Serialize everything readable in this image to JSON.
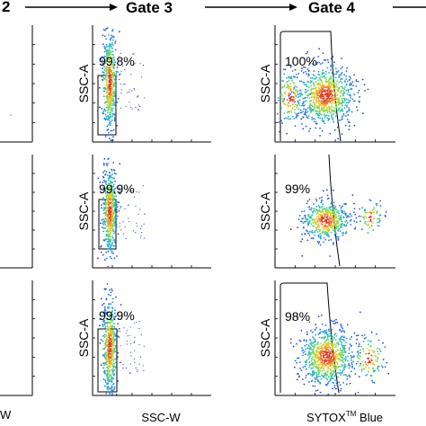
{
  "chart_data": {
    "type": "scatter",
    "header": {
      "left_label": "2",
      "gates": [
        "Gate 3",
        "Gate 4"
      ]
    },
    "x_labels": {
      "gate3": "SSC-W",
      "gate4_main": "SYTOX",
      "gate4_sup": "TM",
      "gate4_tail": " Blue",
      "left_cut": "W"
    },
    "y_label": "SSC-A",
    "rows": [
      {
        "gate3": {
          "pct": "99.8%",
          "cluster": {
            "cx": 0.14,
            "cy": 0.48,
            "sx": 0.03,
            "sy": 0.22
          }
        },
        "gate4": {
          "pct": "100%",
          "clusters": [
            {
              "cx": 0.42,
              "cy": 0.6,
              "sx": 0.12,
              "sy": 0.13,
              "n": 820
            },
            {
              "cx": 0.12,
              "cy": 0.62,
              "sx": 0.06,
              "sy": 0.12,
              "n": 160
            }
          ]
        }
      },
      {
        "gate3": {
          "pct": "99.9%",
          "cluster": {
            "cx": 0.14,
            "cy": 0.5,
            "sx": 0.03,
            "sy": 0.2
          }
        },
        "gate4": {
          "pct": "99%",
          "clusters": [
            {
              "cx": 0.42,
              "cy": 0.58,
              "sx": 0.1,
              "sy": 0.09,
              "n": 520
            },
            {
              "cx": 0.8,
              "cy": 0.55,
              "sx": 0.05,
              "sy": 0.08,
              "n": 70
            }
          ]
        }
      },
      {
        "gate3": {
          "pct": "99.9%",
          "cluster": {
            "cx": 0.14,
            "cy": 0.58,
            "sx": 0.03,
            "sy": 0.22
          }
        },
        "gate4": {
          "pct": "98%",
          "clusters": [
            {
              "cx": 0.43,
              "cy": 0.66,
              "sx": 0.11,
              "sy": 0.13,
              "n": 800
            },
            {
              "cx": 0.78,
              "cy": 0.68,
              "sx": 0.07,
              "sy": 0.1,
              "n": 120
            }
          ]
        }
      }
    ]
  }
}
